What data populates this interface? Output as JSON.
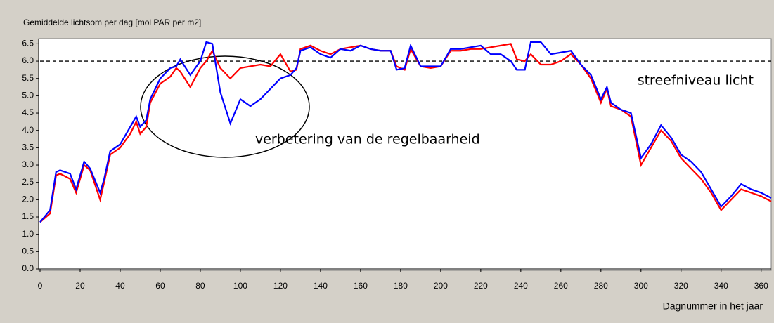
{
  "chart_data": {
    "type": "line",
    "title": "Gemiddelde lichtsom per dag [mol PAR per m2]",
    "x_label": "Dagnummer in het jaar",
    "annotations": [
      "streefniveau licht",
      "verbetering van de regelbaarheid"
    ],
    "reference_line": 6.0,
    "x": [
      0,
      5,
      8,
      10,
      15,
      18,
      22,
      25,
      30,
      32,
      35,
      40,
      45,
      48,
      50,
      53,
      55,
      60,
      65,
      68,
      70,
      75,
      80,
      83,
      86,
      90,
      95,
      100,
      105,
      110,
      115,
      120,
      125,
      128,
      130,
      135,
      140,
      145,
      150,
      155,
      160,
      165,
      170,
      175,
      178,
      182,
      185,
      190,
      195,
      200,
      205,
      210,
      215,
      220,
      225,
      230,
      235,
      238,
      242,
      245,
      250,
      255,
      260,
      265,
      270,
      275,
      280,
      283,
      285,
      290,
      295,
      300,
      305,
      310,
      315,
      320,
      325,
      330,
      335,
      340,
      345,
      350,
      355,
      360,
      365
    ],
    "series": [
      {
        "color": "#0000ff",
        "values": [
          1.35,
          1.7,
          2.8,
          2.85,
          2.75,
          2.3,
          3.1,
          2.9,
          2.2,
          2.6,
          3.4,
          3.6,
          4.1,
          4.4,
          4.1,
          4.3,
          4.9,
          5.5,
          5.8,
          5.85,
          6.05,
          5.6,
          6.0,
          6.55,
          6.5,
          5.1,
          4.2,
          4.9,
          4.7,
          4.9,
          5.2,
          5.5,
          5.6,
          5.8,
          6.3,
          6.4,
          6.2,
          6.1,
          6.35,
          6.3,
          6.45,
          6.35,
          6.3,
          6.3,
          5.75,
          5.8,
          6.45,
          5.85,
          5.85,
          5.85,
          6.35,
          6.35,
          6.4,
          6.45,
          6.2,
          6.2,
          6.0,
          5.75,
          5.75,
          6.55,
          6.55,
          6.2,
          6.25,
          6.3,
          5.9,
          5.6,
          4.9,
          5.25,
          4.8,
          4.6,
          4.5,
          3.2,
          3.6,
          4.15,
          3.8,
          3.3,
          3.1,
          2.8,
          2.3,
          1.8,
          2.1,
          2.45,
          2.3,
          2.2,
          2.05
        ]
      },
      {
        "color": "#ff0000",
        "values": [
          1.35,
          1.6,
          2.7,
          2.75,
          2.6,
          2.2,
          3.0,
          2.85,
          2.0,
          2.5,
          3.3,
          3.5,
          3.9,
          4.25,
          3.9,
          4.1,
          4.8,
          5.35,
          5.55,
          5.8,
          5.7,
          5.25,
          5.8,
          6.0,
          6.3,
          5.8,
          5.5,
          5.8,
          5.85,
          5.9,
          5.85,
          6.2,
          5.7,
          5.75,
          6.35,
          6.45,
          6.3,
          6.2,
          6.35,
          6.4,
          6.45,
          6.35,
          6.3,
          6.3,
          5.85,
          5.75,
          6.35,
          5.85,
          5.8,
          5.85,
          6.3,
          6.3,
          6.35,
          6.35,
          6.4,
          6.45,
          6.5,
          6.05,
          6.0,
          6.2,
          5.9,
          5.9,
          6.0,
          6.2,
          5.9,
          5.5,
          4.8,
          5.2,
          4.7,
          4.6,
          4.4,
          3.0,
          3.5,
          4.0,
          3.7,
          3.2,
          2.9,
          2.6,
          2.2,
          1.7,
          2.0,
          2.3,
          2.2,
          2.1,
          1.95
        ]
      }
    ],
    "xlim": [
      0,
      365
    ],
    "xticks": [
      0,
      20,
      40,
      60,
      80,
      100,
      120,
      140,
      160,
      180,
      200,
      220,
      240,
      260,
      280,
      300,
      320,
      340,
      360
    ],
    "ylim": [
      0,
      6.65
    ],
    "yticks": [
      {
        "value": 0,
        "label": "0.0"
      },
      0.5,
      {
        "value": 1,
        "label": "1.0"
      },
      1.5,
      {
        "value": 2,
        "label": "2.0"
      },
      2.5,
      {
        "value": 3,
        "label": "3.0"
      },
      3.5,
      {
        "value": 4,
        "label": "4.0"
      },
      4.5,
      {
        "value": 5,
        "label": "5.0"
      },
      5.5,
      {
        "value": 6,
        "label": "6.0"
      },
      6.5
    ]
  }
}
